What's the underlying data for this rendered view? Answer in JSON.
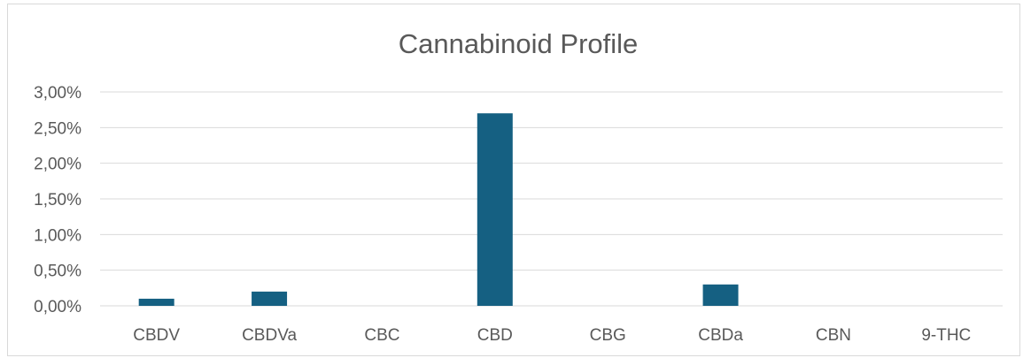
{
  "chart_data": {
    "type": "bar",
    "title": "Cannabinoid Profile",
    "categories": [
      "CBDV",
      "CBDVa",
      "CBC",
      "CBD",
      "CBG",
      "CBDa",
      "CBN",
      "9-THC"
    ],
    "values": [
      0.1,
      0.2,
      0.0,
      2.7,
      0.0,
      0.3,
      0.0,
      0.0
    ],
    "unit": "%",
    "ylim": [
      0,
      3
    ],
    "yticks": [
      0,
      0.5,
      1,
      1.5,
      2,
      2.5,
      3
    ],
    "ytick_labels": [
      "0,00%",
      "0,50%",
      "1,00%",
      "1,50%",
      "2,00%",
      "2,50%",
      "3,00%"
    ],
    "xlabel": "",
    "ylabel": "",
    "grid": true,
    "legend": "none",
    "bar_color": "#156082"
  }
}
